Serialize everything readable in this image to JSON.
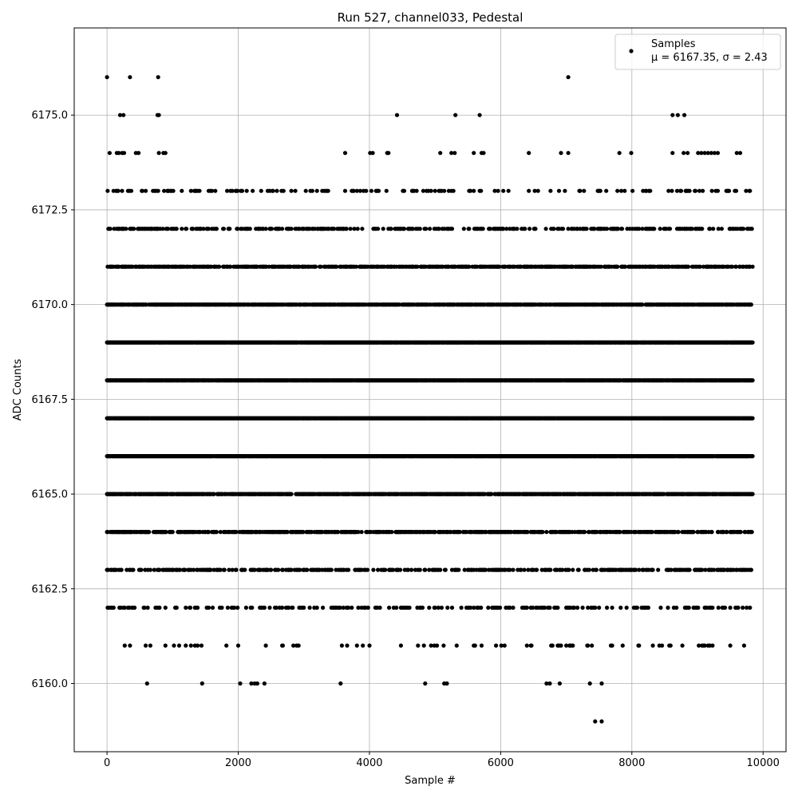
{
  "chart_data": {
    "type": "scatter",
    "title": "Run 527, channel033, Pedestal",
    "xlabel": "Sample #",
    "ylabel": "ADC Counts",
    "xlim": [
      -500,
      10350
    ],
    "ylim": [
      6158.2,
      6177.3
    ],
    "xticks": [
      0,
      2000,
      4000,
      6000,
      8000,
      10000
    ],
    "xtick_labels": [
      "0",
      "2000",
      "4000",
      "6000",
      "8000",
      "10000"
    ],
    "yticks": [
      6160.0,
      6162.5,
      6165.0,
      6167.5,
      6170.0,
      6172.5,
      6175.0
    ],
    "ytick_labels": [
      "6160.0",
      "6162.5",
      "6165.0",
      "6167.5",
      "6170.0",
      "6172.5",
      "6175.0"
    ],
    "grid": true,
    "legend_position": "top-right",
    "point_color": "#000000",
    "series": [
      {
        "name": "Samples",
        "label_line": "μ = 6167.35, σ = 2.43",
        "x_range": [
          0,
          9840
        ],
        "levels": [
          {
            "y": 6176,
            "x": [
              0,
              350,
              780,
              7030
            ]
          },
          {
            "y": 6175,
            "x": [
              200,
              250,
              770,
              790,
              4420,
              5310,
              5680,
              8620,
              8700,
              8800
            ]
          },
          {
            "y": 6174,
            "x": [
              40,
              150,
              180,
              230,
              260,
              440,
              480,
              790,
              860,
              890,
              3630,
              4010,
              4050,
              4270,
              4290,
              5080,
              5250,
              5300,
              5590,
              5710,
              5740,
              6430,
              6920,
              7030,
              7810,
              7990,
              8620,
              8790,
              8850,
              9010,
              9060,
              9110,
              9160,
              9210,
              9260,
              9310,
              9600,
              9650
            ]
          },
          {
            "y": 6172,
            "x": [
              2610,
              3000,
              4920,
              9030
            ]
          },
          {
            "y": 6160,
            "x": [
              610,
              1450,
              2030,
              2200,
              2250,
              2290,
              2400,
              3560,
              4850,
              5140,
              5180,
              6700,
              6750,
              6900,
              7360,
              7540
            ]
          },
          {
            "y": 6159,
            "x": [
              7440,
              7540
            ]
          }
        ],
        "dense_levels": [
          {
            "y": 6173,
            "density": 0.14
          },
          {
            "y": 6172,
            "density": 0.35
          },
          {
            "y": 6171,
            "density": 0.55
          },
          {
            "y": 6170,
            "density": 0.8
          },
          {
            "y": 6169,
            "density": 0.97
          },
          {
            "y": 6168,
            "density": 0.95
          },
          {
            "y": 6167,
            "density": 0.98
          },
          {
            "y": 6166,
            "density": 0.97
          },
          {
            "y": 6165,
            "density": 0.8
          },
          {
            "y": 6164,
            "density": 0.55
          },
          {
            "y": 6163,
            "density": 0.35
          },
          {
            "y": 6162,
            "density": 0.2
          },
          {
            "y": 6161,
            "density": 0.08
          }
        ]
      }
    ]
  }
}
